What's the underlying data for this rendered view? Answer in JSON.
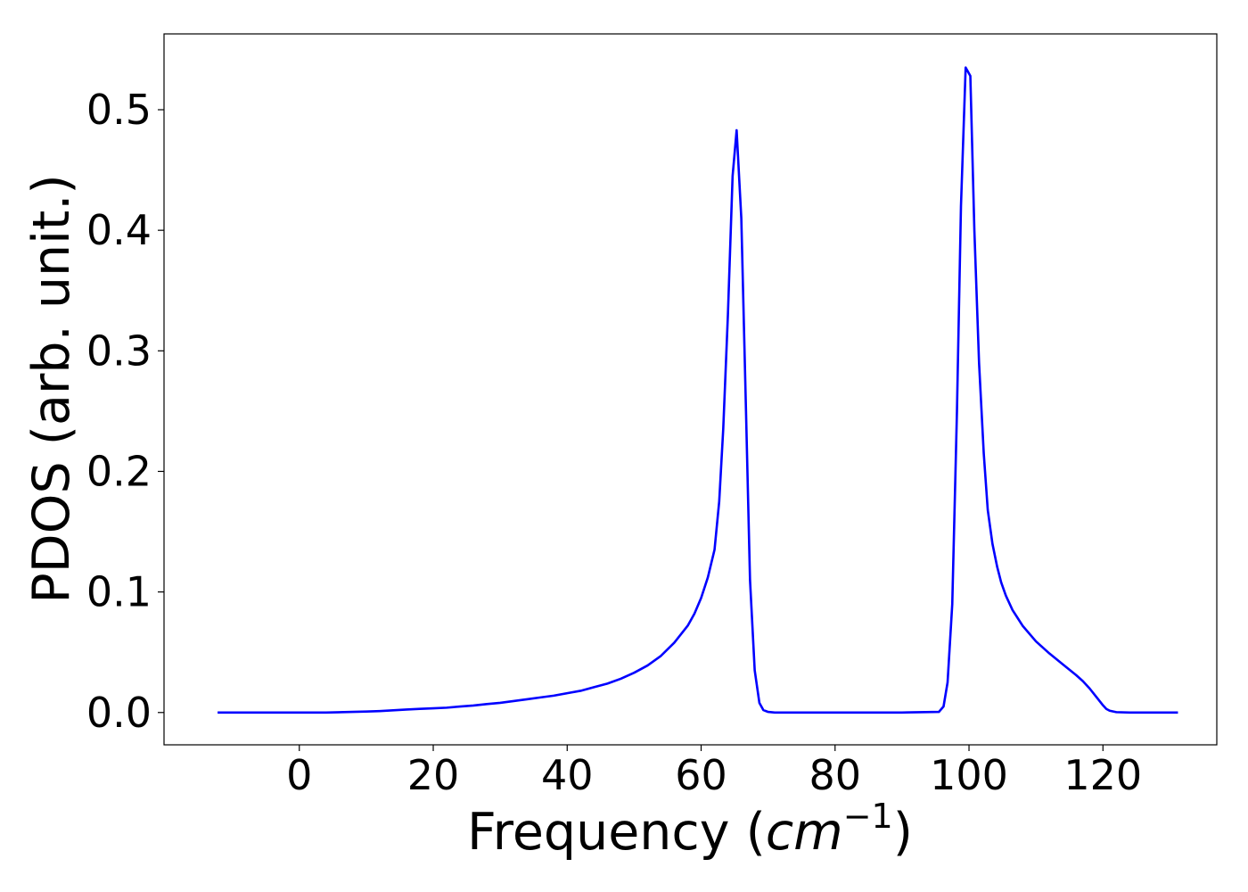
{
  "chart_data": {
    "type": "line",
    "title": "",
    "xlabel": "Frequency",
    "xlabel_unit_prefix": "(",
    "xlabel_unit_math": "cm",
    "xlabel_unit_exponent": "−1",
    "xlabel_unit_suffix": ")",
    "ylabel": "PDOS (arb. unit.)",
    "xlim": [
      -20.2,
      137
    ],
    "ylim": [
      -0.0268,
      0.5629
    ],
    "xticks": [
      0,
      20,
      40,
      60,
      80,
      100,
      120
    ],
    "xtick_labels": [
      "0",
      "20",
      "40",
      "60",
      "80",
      "100",
      "120"
    ],
    "yticks": [
      0.0,
      0.1,
      0.2,
      0.3,
      0.4,
      0.5
    ],
    "ytick_labels": [
      "0.0",
      "0.1",
      "0.2",
      "0.3",
      "0.4",
      "0.5"
    ],
    "grid": false,
    "legend": "none",
    "line_color": "#0000ff",
    "series": [
      {
        "x": [
          -12.2,
          -6,
          0,
          4,
          8,
          10,
          12,
          14,
          16,
          18,
          20,
          22,
          24,
          26,
          28,
          30,
          32,
          34,
          36,
          38,
          40,
          42,
          44,
          46,
          48,
          50,
          52,
          54,
          56,
          57,
          58,
          59,
          60,
          61,
          62,
          62.7,
          63.3,
          64,
          64.7,
          65.3,
          66,
          66.7,
          67.3,
          68,
          68.7,
          69.3,
          70,
          71,
          75,
          80,
          90,
          95.5,
          96.2,
          96.8,
          97.5,
          98.2,
          98.8,
          99.5,
          100.2,
          100.8,
          101.5,
          102.2,
          102.8,
          103.5,
          104.2,
          104.8,
          105.5,
          106.5,
          108,
          110,
          112,
          114,
          116,
          117,
          118,
          119,
          120,
          120.5,
          121,
          122,
          124,
          126,
          128,
          131.2
        ],
        "y": [
          0.0,
          0.0,
          0.0,
          0.0,
          0.0005,
          0.0008,
          0.0012,
          0.0018,
          0.0025,
          0.003,
          0.0035,
          0.004,
          0.005,
          0.0058,
          0.007,
          0.008,
          0.0095,
          0.011,
          0.0125,
          0.014,
          0.016,
          0.018,
          0.021,
          0.024,
          0.028,
          0.033,
          0.039,
          0.047,
          0.058,
          0.065,
          0.072,
          0.082,
          0.095,
          0.112,
          0.135,
          0.175,
          0.235,
          0.33,
          0.445,
          0.483,
          0.41,
          0.25,
          0.11,
          0.035,
          0.008,
          0.002,
          0.0005,
          0.0,
          0.0,
          0.0,
          0.0,
          0.0005,
          0.005,
          0.025,
          0.09,
          0.25,
          0.42,
          0.535,
          0.528,
          0.4,
          0.29,
          0.215,
          0.168,
          0.14,
          0.121,
          0.108,
          0.097,
          0.085,
          0.072,
          0.059,
          0.049,
          0.04,
          0.031,
          0.026,
          0.02,
          0.013,
          0.006,
          0.003,
          0.0015,
          0.0003,
          0.0,
          0.0,
          0.0,
          0.0
        ]
      }
    ]
  }
}
